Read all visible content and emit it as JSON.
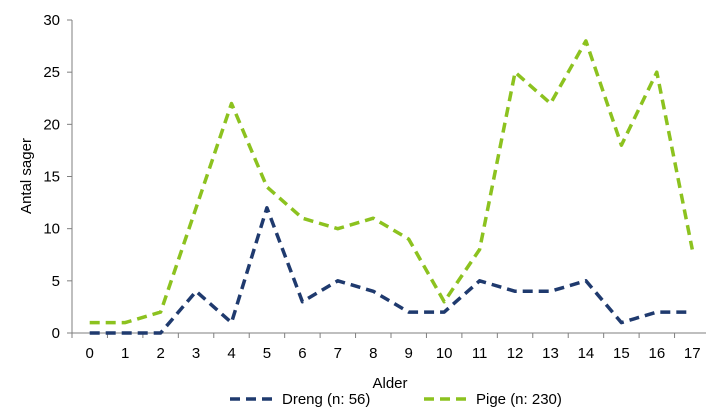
{
  "chart_data": {
    "type": "line",
    "title": "",
    "xlabel": "Alder",
    "ylabel": "Antal sager",
    "x": [
      0,
      1,
      2,
      3,
      4,
      5,
      6,
      7,
      8,
      9,
      10,
      11,
      12,
      13,
      14,
      15,
      16,
      17
    ],
    "ylim": [
      0,
      30
    ],
    "yticks": [
      0,
      5,
      10,
      15,
      20,
      25,
      30
    ],
    "grid": false,
    "legend_position": "bottom",
    "series": [
      {
        "name": "Dreng (n: 56)",
        "color": "#1f3a6e",
        "style": "dashed",
        "values": [
          0,
          0,
          0,
          4,
          1,
          12,
          3,
          5,
          4,
          2,
          2,
          5,
          4,
          4,
          5,
          1,
          2,
          2
        ]
      },
      {
        "name": "Pige (n: 230)",
        "color": "#8cc21f",
        "style": "dashed",
        "values": [
          1,
          1,
          2,
          12,
          22,
          14,
          11,
          10,
          11,
          9,
          3,
          8,
          25,
          22,
          28,
          18,
          25,
          8
        ]
      }
    ]
  }
}
